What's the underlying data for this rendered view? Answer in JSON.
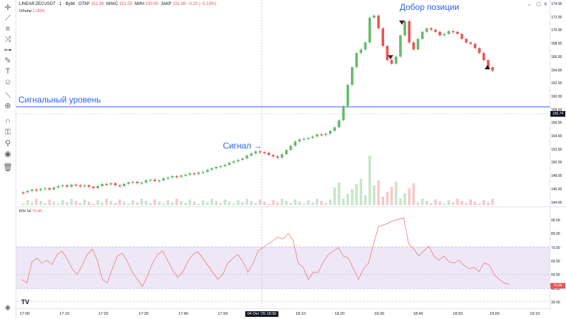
{
  "legend": {
    "symbol": "LINEAR:ZECUSDT · 1 · Bybit",
    "open_label": "ОТКР",
    "open_value": "151.36",
    "high_label": "МАКС",
    "high_value": "151.55",
    "low_label": "МИН",
    "low_value": "150.95",
    "close_label": "ЗАКР",
    "close_value": "151.36",
    "change": "−0.20 (−0.13%)"
  },
  "volume_legend": {
    "label": "Объём",
    "value": "1.082K"
  },
  "rsi_legend": {
    "label": "RSI 14",
    "value": "75.86"
  },
  "annotations": {
    "top": "Добор позиции",
    "signal_level": "Сигнальный уровень",
    "signal": "Сигнал →"
  },
  "price_badge": "156.74",
  "rsi_badge": "75.86",
  "price_ticks": [
    "174.00",
    "172.00",
    "170.00",
    "168.00",
    "166.00",
    "164.00",
    "162.00",
    "160.00",
    "158.00",
    "156.00",
    "154.00",
    "152.00",
    "150.00",
    "148.00",
    "146.00",
    "144.00"
  ],
  "rsi_ticks": [
    "90.00",
    "80.00",
    "70.00",
    "60.00",
    "50.00",
    "40.00",
    "30.00"
  ],
  "time_ticks": [
    "17:00",
    "17:10",
    "17:20",
    "17:30",
    "17:40",
    "17:50",
    "04 Окт '25  18:00",
    "18:10",
    "18:20",
    "18:30",
    "18:40",
    "18:50",
    "19:00",
    "19:10"
  ],
  "colors": {
    "up": "#66bb6a",
    "down": "#ef5350",
    "rsi": "#f06b6b",
    "signal": "#2962ff",
    "vol_up": "#c8e6c9",
    "vol_down": "#f8c9c8",
    "rsi_band": "#ede7f6"
  },
  "icons": [
    "crosshair-icon",
    "trend-line-icon",
    "fib-icon",
    "pattern-icon",
    "forecast-icon",
    "brush-icon",
    "text-icon",
    "emoji-icon",
    "ruler-icon",
    "zoom-icon",
    "magnet-icon",
    "lock-icon",
    "eye-icon",
    "trash-icon",
    "layers-icon"
  ]
}
